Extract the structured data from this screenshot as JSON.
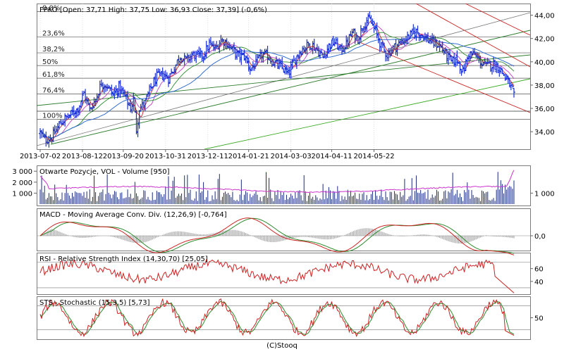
{
  "chart_data": [
    {
      "type": "candlestick",
      "title": "FPKO [Open: 37,71  High: 37,75  Low: 36,93  Close: 37,39] (-0,6%)",
      "ylim": [
        32.5,
        45
      ],
      "yticks": [
        "44,00",
        "42,00",
        "40,00",
        "38,00",
        "36,00",
        "34,00"
      ],
      "ytick_values": [
        44,
        42,
        40,
        38,
        36,
        34
      ],
      "x_tick_labels": [
        "2013-07-02",
        "2013-08-12",
        "2013-09-20",
        "2013-10-31",
        "2013-12-11",
        "2014-01-21",
        "2014-03-03",
        "2014-04-11",
        "2014-05-22"
      ],
      "fib_levels": [
        {
          "label": "0,0%",
          "value": 44.3
        },
        {
          "label": "23,6%",
          "value": 42.12
        },
        {
          "label": "38,2%",
          "value": 40.77
        },
        {
          "label": "50%",
          "value": 39.68
        },
        {
          "label": "61,8%",
          "value": 38.59
        },
        {
          "label": "76,4%",
          "value": 37.24
        },
        {
          "label": "100%",
          "value": 35.06
        }
      ],
      "last": {
        "open": 37.71,
        "high": 37.75,
        "low": 36.93,
        "close": 37.39,
        "change": "-0,6%"
      },
      "anchors": [
        [
          0,
          33.9
        ],
        [
          3,
          33.3
        ],
        [
          8,
          33.5
        ],
        [
          14,
          34.8
        ],
        [
          20,
          35.4
        ],
        [
          26,
          36.0
        ],
        [
          30,
          37.3
        ],
        [
          34,
          35.9
        ],
        [
          38,
          36.8
        ],
        [
          42,
          38.2
        ],
        [
          46,
          37.9
        ],
        [
          50,
          37.2
        ],
        [
          54,
          37.8
        ],
        [
          58,
          37.0
        ],
        [
          62,
          36.0
        ],
        [
          64,
          36.8
        ],
        [
          66,
          34.2
        ],
        [
          68,
          36.0
        ],
        [
          72,
          36.5
        ],
        [
          76,
          37.8
        ],
        [
          80,
          38.7
        ],
        [
          84,
          38.9
        ],
        [
          88,
          38.6
        ],
        [
          92,
          39.5
        ],
        [
          96,
          40.5
        ],
        [
          100,
          40.1
        ],
        [
          104,
          40.6
        ],
        [
          108,
          40.5
        ],
        [
          112,
          40.6
        ],
        [
          116,
          41.5
        ],
        [
          120,
          41.1
        ],
        [
          124,
          41.9
        ],
        [
          128,
          41.6
        ],
        [
          132,
          41.0
        ],
        [
          136,
          40.5
        ],
        [
          140,
          40.5
        ],
        [
          144,
          39.4
        ],
        [
          148,
          39.8
        ],
        [
          152,
          40.6
        ],
        [
          156,
          40.5
        ],
        [
          160,
          39.9
        ],
        [
          166,
          39.5
        ],
        [
          170,
          38.9
        ],
        [
          174,
          40.0
        ],
        [
          178,
          40.9
        ],
        [
          182,
          41.3
        ],
        [
          186,
          41.5
        ],
        [
          190,
          41.0
        ],
        [
          194,
          40.4
        ],
        [
          198,
          41.4
        ],
        [
          202,
          41.7
        ],
        [
          206,
          41.0
        ],
        [
          210,
          41.5
        ],
        [
          214,
          42.5
        ],
        [
          218,
          42.0
        ],
        [
          222,
          43.3
        ],
        [
          226,
          43.6
        ],
        [
          230,
          42.6
        ],
        [
          234,
          41.3
        ],
        [
          238,
          40.6
        ],
        [
          242,
          41.2
        ],
        [
          246,
          41.5
        ],
        [
          250,
          41.9
        ],
        [
          254,
          42.3
        ],
        [
          258,
          42.6
        ],
        [
          262,
          42.3
        ],
        [
          266,
          41.9
        ],
        [
          270,
          41.6
        ],
        [
          274,
          41.4
        ],
        [
          278,
          40.7
        ],
        [
          282,
          40.0
        ],
        [
          286,
          40.2
        ],
        [
          290,
          39.1
        ],
        [
          294,
          40.7
        ],
        [
          298,
          40.6
        ],
        [
          302,
          40.0
        ],
        [
          306,
          39.6
        ],
        [
          310,
          39.8
        ],
        [
          314,
          39.6
        ],
        [
          318,
          38.9
        ],
        [
          322,
          38.0
        ],
        [
          325,
          37.4
        ]
      ]
    },
    {
      "type": "bar",
      "title": "Otwarte Pozycje, VOL - Volume [950]",
      "yticks_left": [
        "3 000",
        "2 000",
        "1 000"
      ],
      "ytick_values_left": [
        3000,
        2000,
        1000
      ],
      "yticks_right": [
        "1 000"
      ],
      "ytick_values_right": [
        1000
      ]
    },
    {
      "type": "line",
      "title": "MACD - Moving Average Conv. Div. (12,26,9) [-0,764]",
      "yticks": [
        "0,0"
      ],
      "ytick_values": [
        0
      ]
    },
    {
      "type": "line",
      "title": "RSI - Relative Strength Index (14,30,70) [25,05]",
      "yticks": [
        "60",
        "40"
      ],
      "ytick_values": [
        60,
        40
      ],
      "ylim": [
        20,
        85
      ]
    },
    {
      "type": "line",
      "title": "STS - Stochastic (15,3,5) [5,73]",
      "yticks": [
        "50"
      ],
      "ytick_values": [
        50
      ],
      "ylim": [
        0,
        100
      ]
    }
  ],
  "footer": "(C)Stooq"
}
